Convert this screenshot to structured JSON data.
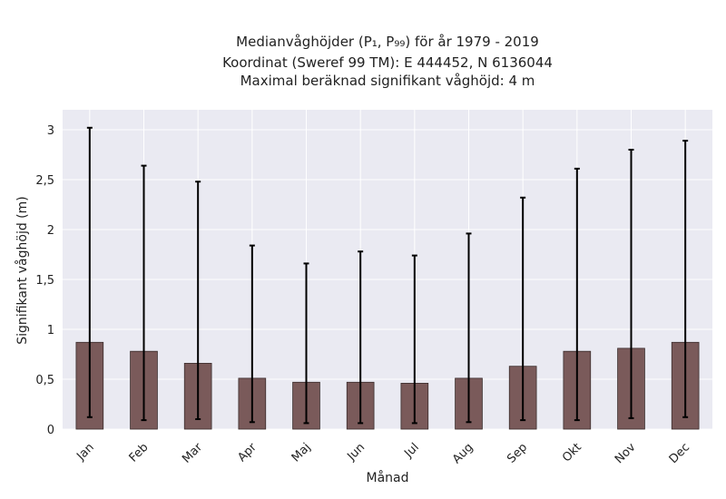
{
  "chart_data": {
    "type": "bar",
    "title_lines": [
      "Medianvåghöjder (P₁, P₉₉) för år 1979 - 2019",
      "Koordinat (Sweref 99 TM): E 444452, N 6136044",
      "Maximal beräknad signifikant våghöjd: 4 m"
    ],
    "xlabel": "Månad",
    "ylabel": "Signifikant våghöjd (m)",
    "categories": [
      "Jan",
      "Feb",
      "Mar",
      "Apr",
      "Maj",
      "Jun",
      "Jul",
      "Aug",
      "Sep",
      "Okt",
      "Nov",
      "Dec"
    ],
    "values": [
      0.87,
      0.78,
      0.66,
      0.51,
      0.47,
      0.47,
      0.46,
      0.51,
      0.63,
      0.78,
      0.81,
      0.87
    ],
    "p1": [
      0.12,
      0.09,
      0.1,
      0.07,
      0.06,
      0.06,
      0.06,
      0.07,
      0.09,
      0.09,
      0.11,
      0.12
    ],
    "p99": [
      3.02,
      2.64,
      2.48,
      1.84,
      1.66,
      1.78,
      1.74,
      1.96,
      2.32,
      2.61,
      2.8,
      2.89
    ],
    "ylim": [
      0,
      3.2
    ],
    "yticks": [
      0,
      0.5,
      1,
      1.5,
      2,
      2.5,
      3
    ],
    "ytick_labels": [
      "0",
      "0,5",
      "1",
      "1,5",
      "2",
      "2,5",
      "3"
    ],
    "grid": true,
    "colors": {
      "bar": "#7a5a5a",
      "bar_edge": "#3a2c2c",
      "plot_bg": "#eaeaf2",
      "error_bar": "#000000"
    }
  }
}
